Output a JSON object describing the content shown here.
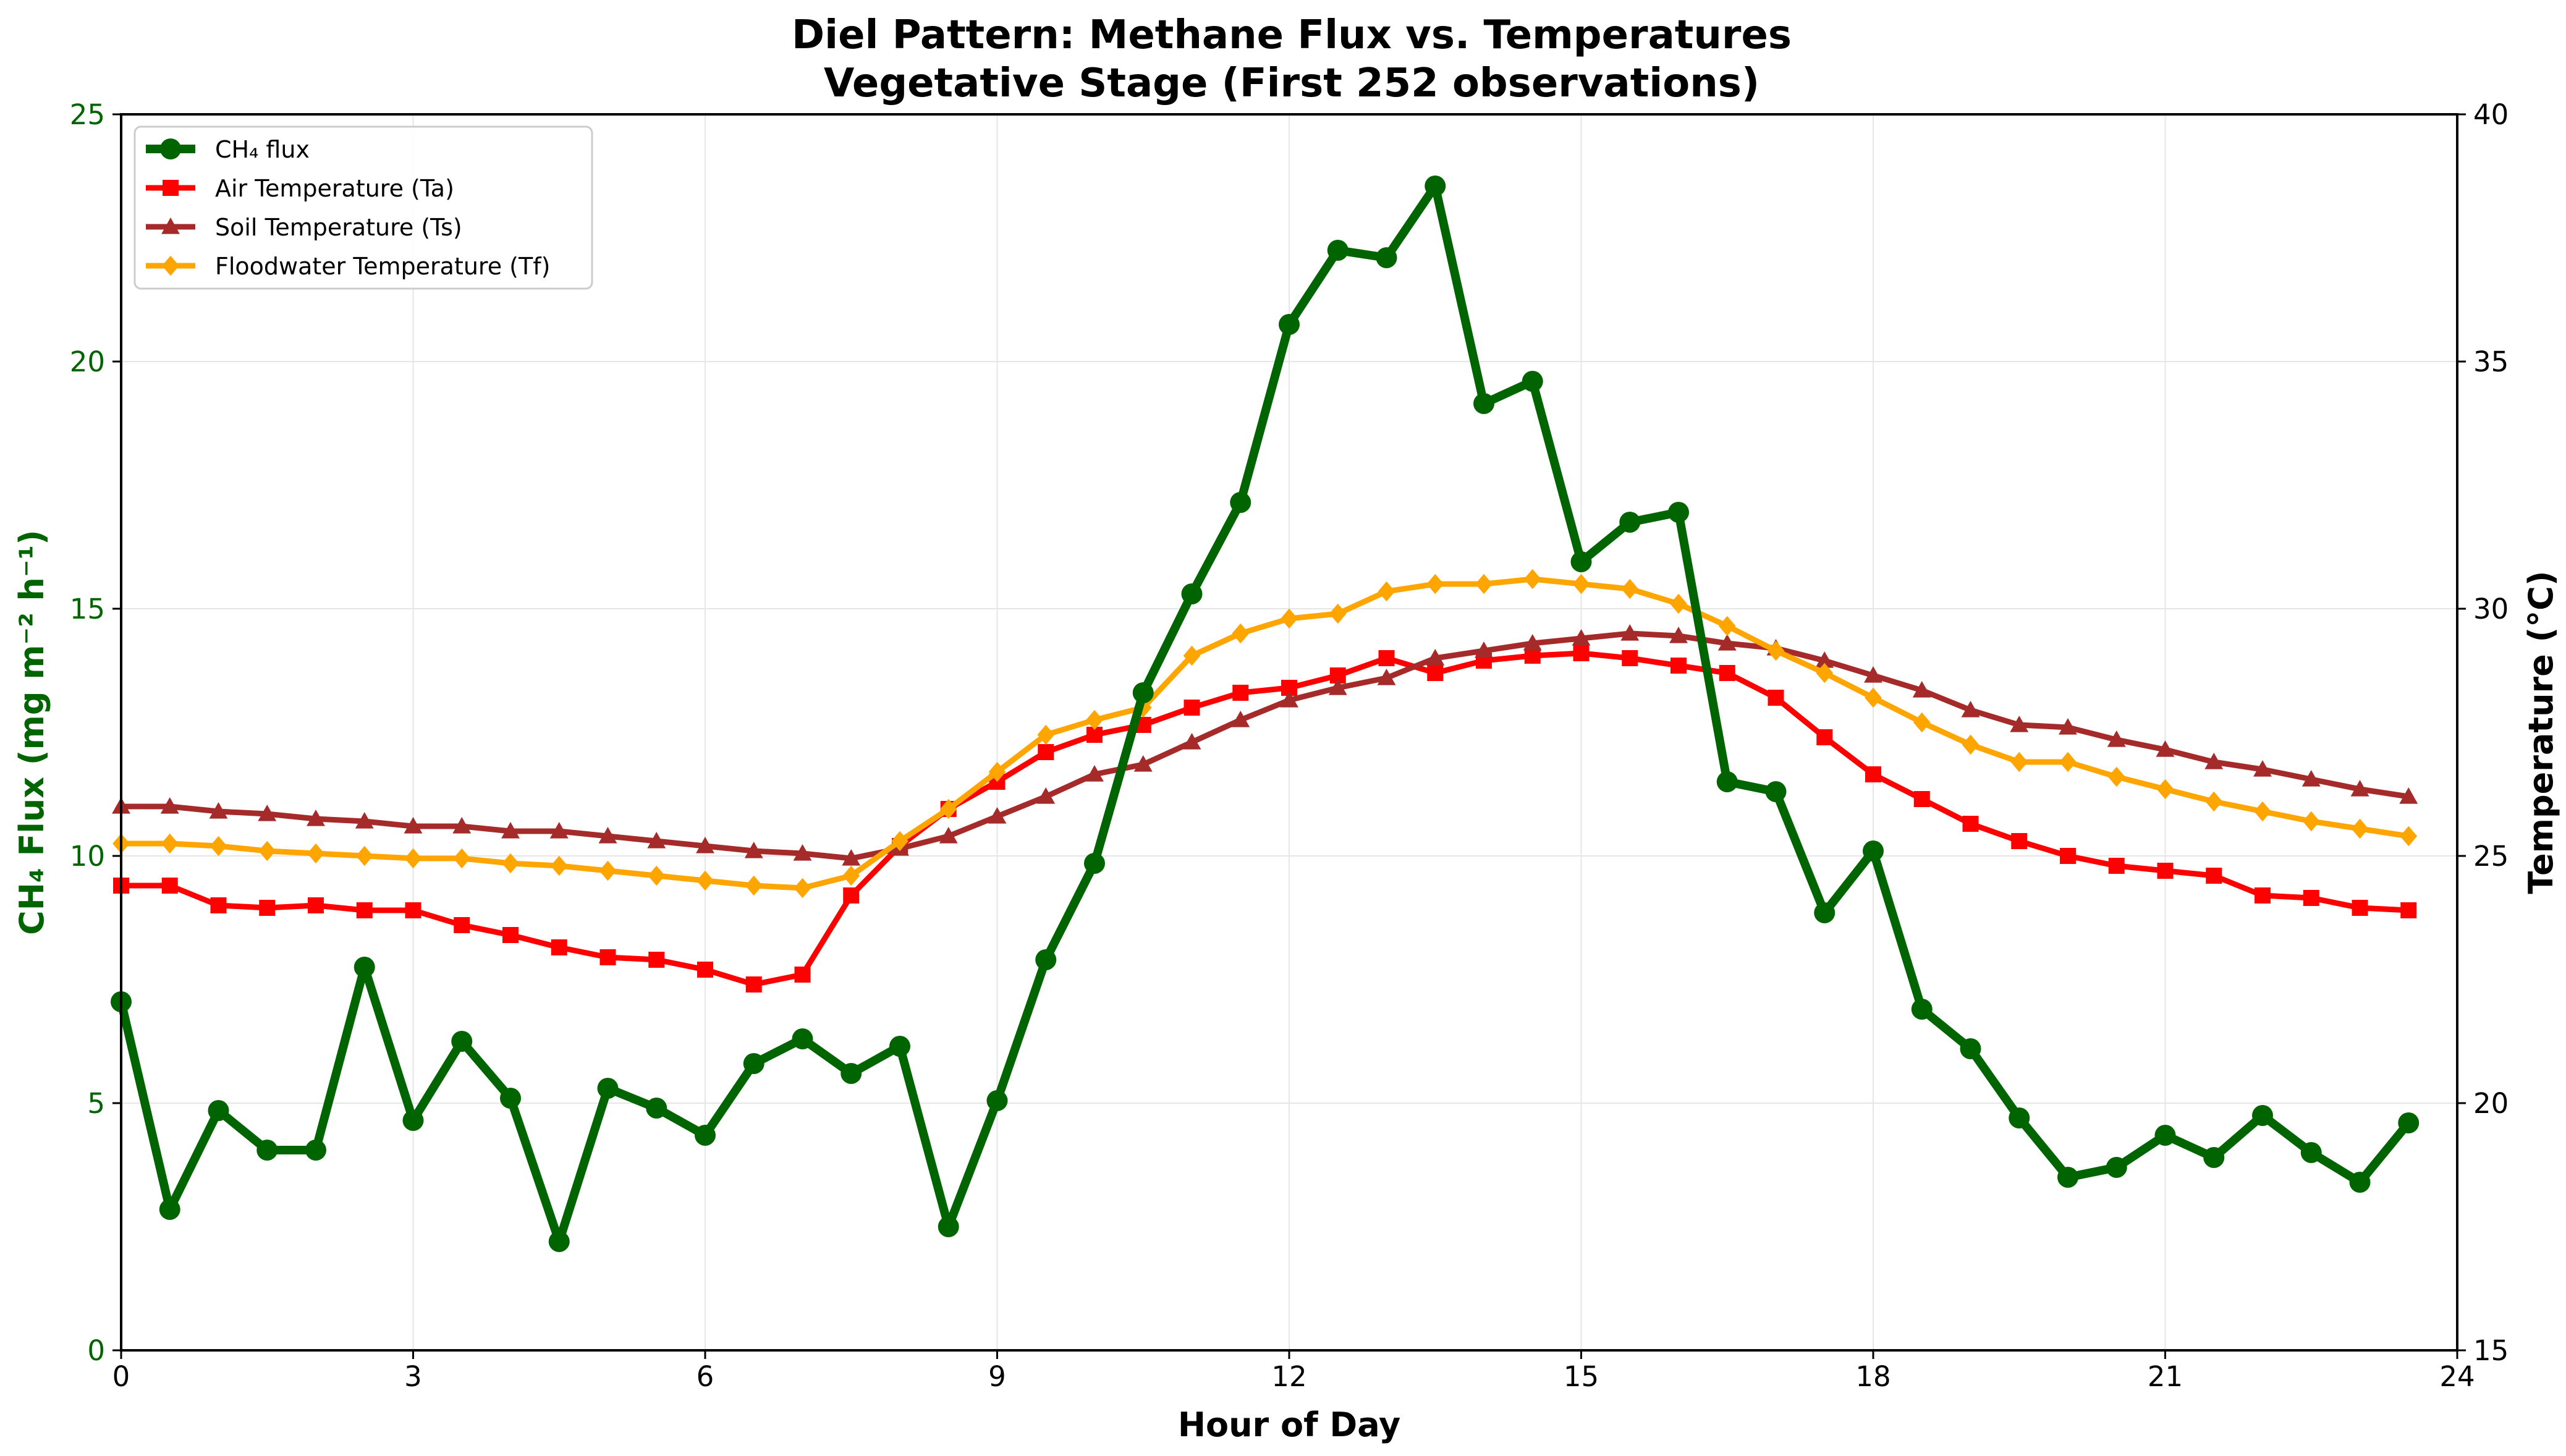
{
  "chart_data": {
    "type": "line",
    "title": "Diel Pattern: Methane Flux vs. Temperatures",
    "subtitle": "Vegetative Stage (First 252 observations)",
    "xlabel": "Hour of Day",
    "ylabel_left": "CH₄ Flux (mg m⁻² h⁻¹)",
    "ylabel_right": "Temperature (°C)",
    "xlim": [
      0,
      24
    ],
    "ylim_left": [
      0,
      25
    ],
    "ylim_right": [
      15,
      40
    ],
    "xticks": [
      "0",
      "3",
      "6",
      "9",
      "12",
      "15",
      "18",
      "21",
      "24"
    ],
    "yticks_left": [
      "0",
      "5",
      "10",
      "15",
      "20",
      "25"
    ],
    "yticks_right": [
      "15",
      "20",
      "25",
      "30",
      "35",
      "40"
    ],
    "grid": true,
    "legend_position": "top-left",
    "x": [
      0,
      0.5,
      1,
      1.5,
      2,
      2.5,
      3,
      3.5,
      4,
      4.5,
      5,
      5.5,
      6,
      6.5,
      7,
      7.5,
      8,
      8.5,
      9,
      9.5,
      10,
      10.5,
      11,
      11.5,
      12,
      12.5,
      13,
      13.5,
      14,
      14.5,
      15,
      15.5,
      16,
      16.5,
      17,
      17.5,
      18,
      18.5,
      19,
      19.5,
      20,
      20.5,
      21,
      21.5,
      22,
      22.5,
      23,
      23.5
    ],
    "series": [
      {
        "name": "CH₄ flux",
        "axis": "left",
        "color": "#006400",
        "marker": "circle",
        "values": [
          7.05,
          2.85,
          4.85,
          4.05,
          4.05,
          7.75,
          4.65,
          6.25,
          5.1,
          2.2,
          5.3,
          4.9,
          4.35,
          5.8,
          6.3,
          5.6,
          6.15,
          2.5,
          5.05,
          7.9,
          9.85,
          13.3,
          15.3,
          17.15,
          20.75,
          22.25,
          22.1,
          23.55,
          19.15,
          19.6,
          15.95,
          16.75,
          16.95,
          11.5,
          11.3,
          8.85,
          10.1,
          6.9,
          6.1,
          4.7,
          3.5,
          3.7,
          4.35,
          3.9,
          4.75,
          4.0,
          3.4,
          4.6
        ]
      },
      {
        "name": "Air Temperature (Ta)",
        "axis": "right",
        "color": "#ff0000",
        "marker": "square",
        "values": [
          24.4,
          24.4,
          24.0,
          23.95,
          24.0,
          23.9,
          23.9,
          23.6,
          23.4,
          23.15,
          22.95,
          22.9,
          22.7,
          22.4,
          22.6,
          24.2,
          25.2,
          25.95,
          26.5,
          27.1,
          27.45,
          27.65,
          28.0,
          28.3,
          28.4,
          28.65,
          29.0,
          28.7,
          28.95,
          29.05,
          29.1,
          29.0,
          28.85,
          28.7,
          28.2,
          27.4,
          26.65,
          26.15,
          25.65,
          25.3,
          25.0,
          24.8,
          24.7,
          24.6,
          24.2,
          24.15,
          23.95,
          23.9
        ]
      },
      {
        "name": "Soil Temperature (Ts)",
        "axis": "right",
        "color": "#a52a2a",
        "marker": "triangle",
        "values": [
          26.0,
          26.0,
          25.9,
          25.85,
          25.75,
          25.7,
          25.6,
          25.6,
          25.5,
          25.5,
          25.4,
          25.3,
          25.2,
          25.1,
          25.05,
          24.95,
          25.15,
          25.4,
          25.8,
          26.2,
          26.65,
          26.85,
          27.3,
          27.75,
          28.15,
          28.4,
          28.6,
          29.0,
          29.15,
          29.3,
          29.4,
          29.5,
          29.45,
          29.3,
          29.2,
          28.95,
          28.65,
          28.35,
          27.95,
          27.65,
          27.6,
          27.35,
          27.15,
          26.9,
          26.75,
          26.55,
          26.35,
          26.2
        ]
      },
      {
        "name": "Floodwater Temperature (Tf)",
        "axis": "right",
        "color": "#ffa500",
        "marker": "diamond",
        "values": [
          25.25,
          25.25,
          25.2,
          25.1,
          25.05,
          25.0,
          24.95,
          24.95,
          24.85,
          24.8,
          24.7,
          24.6,
          24.5,
          24.4,
          24.35,
          24.6,
          25.3,
          25.95,
          26.7,
          27.45,
          27.75,
          28.0,
          29.05,
          29.5,
          29.8,
          29.9,
          30.35,
          30.5,
          30.5,
          30.6,
          30.5,
          30.4,
          30.1,
          29.65,
          29.15,
          28.7,
          28.2,
          27.7,
          27.25,
          26.9,
          26.9,
          26.6,
          26.35,
          26.1,
          25.9,
          25.7,
          25.55,
          25.4
        ]
      }
    ]
  }
}
